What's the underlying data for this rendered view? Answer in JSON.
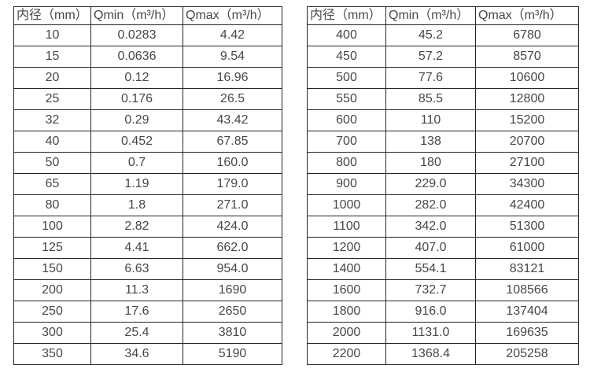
{
  "page": {
    "background_color": "#ffffff",
    "text_color": "#474747",
    "border_color": "#262626"
  },
  "tables": [
    {
      "name": "flow-table-small-diameters",
      "headers": [
        "内径（mm）",
        "Qmin（m³/h）",
        "Qmax（m³/h）"
      ],
      "rows": [
        [
          "10",
          "0.0283",
          "4.42"
        ],
        [
          "15",
          "0.0636",
          "9.54"
        ],
        [
          "20",
          "0.12",
          "16.96"
        ],
        [
          "25",
          "0.176",
          "26.5"
        ],
        [
          "32",
          "0.29",
          "43.42"
        ],
        [
          "40",
          "0.452",
          "67.85"
        ],
        [
          "50",
          "0.7",
          "160.0"
        ],
        [
          "65",
          "1.19",
          "179.0"
        ],
        [
          "80",
          "1.8",
          "271.0"
        ],
        [
          "100",
          "2.82",
          "424.0"
        ],
        [
          "125",
          "4.41",
          "662.0"
        ],
        [
          "150",
          "6.63",
          "954.0"
        ],
        [
          "200",
          "11.3",
          "1690"
        ],
        [
          "250",
          "17.6",
          "2650"
        ],
        [
          "300",
          "25.4",
          "3810"
        ],
        [
          "350",
          "34.6",
          "5190"
        ]
      ]
    },
    {
      "name": "flow-table-large-diameters",
      "headers": [
        "内径（mm）",
        "Qmin（m³/h）",
        "Qmax（m³/h）"
      ],
      "rows": [
        [
          "400",
          "45.2",
          "6780"
        ],
        [
          "450",
          "57.2",
          "8570"
        ],
        [
          "500",
          "77.6",
          "10600"
        ],
        [
          "550",
          "85.5",
          "12800"
        ],
        [
          "600",
          "110",
          "15200"
        ],
        [
          "700",
          "138",
          "20700"
        ],
        [
          "800",
          "180",
          "27100"
        ],
        [
          "900",
          "229.0",
          "34300"
        ],
        [
          "1000",
          "282.0",
          "42400"
        ],
        [
          "1100",
          "342.0",
          "51300"
        ],
        [
          "1200",
          "407.0",
          "61000"
        ],
        [
          "1400",
          "554.1",
          "83121"
        ],
        [
          "1600",
          "732.7",
          "108566"
        ],
        [
          "1800",
          "916.0",
          "137404"
        ],
        [
          "2000",
          "1131.0",
          "169635"
        ],
        [
          "2200",
          "1368.4",
          "205258"
        ]
      ]
    }
  ]
}
